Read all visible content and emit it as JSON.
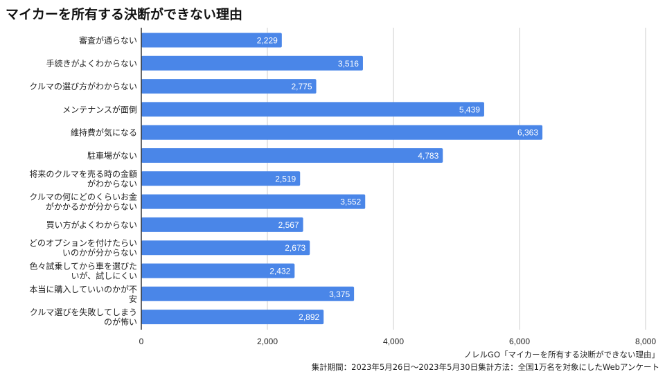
{
  "title": "マイカーを所有する決断ができない理由",
  "colors": {
    "bar": "#4a86e8",
    "grid": "#cccccc",
    "axis": "#333333",
    "label": "#222222",
    "bar_label": "#ffffff"
  },
  "chart_data": {
    "type": "bar",
    "orientation": "horizontal",
    "categories": [
      [
        "審査が通らない"
      ],
      [
        "手続きがよくわからない"
      ],
      [
        "クルマの選び方がわからない"
      ],
      [
        "メンテナンスが面倒"
      ],
      [
        "維持費が気になる"
      ],
      [
        "駐車場がない"
      ],
      [
        "将来のクルマを売る時の金額",
        "がわからない"
      ],
      [
        "クルマの何にどのくらいお金",
        "がかかるかが分からない"
      ],
      [
        "買い方がよくわからない"
      ],
      [
        "どのオプションを付けたらい",
        "いのかが分からない"
      ],
      [
        "色々試乗してから車を選びた",
        "いが、試しにくい"
      ],
      [
        "本当に購入していいのかが不",
        "安"
      ],
      [
        "クルマ選びを失敗してしまう",
        "のが怖い"
      ]
    ],
    "values": [
      2229,
      3516,
      2775,
      5439,
      6363,
      4783,
      2519,
      3552,
      2567,
      2673,
      2432,
      3375,
      2892
    ],
    "value_labels": [
      "2,229",
      "3,516",
      "2,775",
      "5,439",
      "6,363",
      "4,783",
      "2,519",
      "3,552",
      "2,567",
      "2,673",
      "2,432",
      "3,375",
      "2,892"
    ],
    "xlim": [
      0,
      8000
    ],
    "xticks": [
      0,
      2000,
      4000,
      6000,
      8000
    ],
    "xtick_labels": [
      "0",
      "2,000",
      "4,000",
      "6,000",
      "8,000"
    ],
    "grid": true,
    "legend": false
  },
  "source": {
    "line1": "ノレルGO「マイカーを所有する決断ができない理由」",
    "line2": "集計期間：2023年5月26日～2023年5月30日集計方法：全国1万名を対象にしたWebアンケート"
  }
}
